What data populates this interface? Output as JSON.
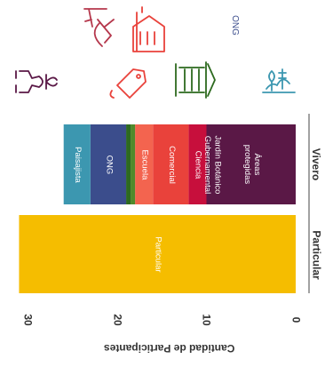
{
  "chart_data": {
    "type": "bar",
    "stacked": true,
    "orientation": "rotated-90-clockwise",
    "ylabel": "Cantidad de Participantes",
    "yticks": [
      0,
      10,
      20,
      30
    ],
    "ylim": [
      0,
      32
    ],
    "grid": false,
    "categories": [
      "Particular",
      "Vivero"
    ],
    "series": [
      {
        "name": "Particular",
        "color": "#F5BD00",
        "values": [
          31,
          0
        ]
      },
      {
        "name": "Áreas protegidas",
        "color": "#5A1846",
        "values": [
          0,
          10
        ]
      },
      {
        "name": "Ciencia",
        "color": "#C70F3C",
        "values": [
          0,
          2
        ]
      },
      {
        "name": "Comercial",
        "color": "#E9423B",
        "values": [
          0,
          4
        ]
      },
      {
        "name": "Escuela",
        "color": "#F3644F",
        "values": [
          0,
          2
        ]
      },
      {
        "name": "Gubernamental",
        "color": "#4F8A2B",
        "values": [
          0,
          0.5
        ]
      },
      {
        "name": "Jardín Botánico",
        "color": "#2D6A1F",
        "values": [
          0,
          0.5
        ]
      },
      {
        "name": "ONG",
        "color": "#3B4D8C",
        "values": [
          0,
          4
        ]
      },
      {
        "name": "Paisajista",
        "color": "#3C97B0",
        "values": [
          0,
          3
        ]
      }
    ]
  },
  "icons": [
    {
      "name": "microscope-icon",
      "color": "#B5374C"
    },
    {
      "name": "school-building-icon",
      "color": "#E9423B"
    },
    {
      "name": "ong-text",
      "label": "ONG",
      "color": "#3B4D8C"
    },
    {
      "name": "hands-plant-icon",
      "color": "#5A1846"
    },
    {
      "name": "price-tag-icon",
      "color": "#E9423B"
    },
    {
      "name": "government-building-icon",
      "color": "#2D6A1F"
    },
    {
      "name": "landscape-trees-icon",
      "color": "#3C97B0"
    }
  ]
}
